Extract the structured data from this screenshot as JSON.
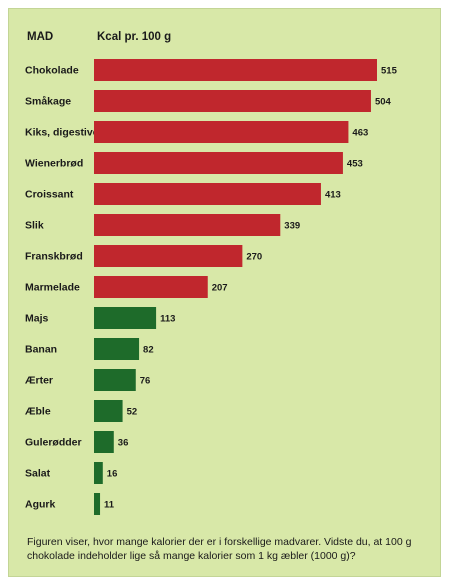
{
  "header": {
    "category_label": "MAD",
    "value_label": "Kcal pr. 100 g"
  },
  "caption": "Figuren viser, hvor mange kalorier der er i forskellige madvarer. Vidste du, at 100 g chokolade indeholder lige så mange kalorier som 1 kg æbler (1000 g)?",
  "colors": {
    "background": "#d8e8a8",
    "high_bar": "#c0272d",
    "low_bar": "#1e6b2a"
  },
  "chart_data": {
    "type": "bar",
    "orientation": "horizontal",
    "categories": [
      "Chokolade",
      "Småkage",
      "Kiks, digestive",
      "Wienerbrød",
      "Croissant",
      "Slik",
      "Franskbrød",
      "Marmelade",
      "Majs",
      "Banan",
      "Ærter",
      "Æble",
      "Gulerødder",
      "Salat",
      "Agurk"
    ],
    "values": [
      515,
      504,
      463,
      453,
      413,
      339,
      270,
      207,
      113,
      82,
      76,
      52,
      36,
      16,
      11
    ],
    "bar_colors": [
      "#c0272d",
      "#c0272d",
      "#c0272d",
      "#c0272d",
      "#c0272d",
      "#c0272d",
      "#c0272d",
      "#c0272d",
      "#1e6b2a",
      "#1e6b2a",
      "#1e6b2a",
      "#1e6b2a",
      "#1e6b2a",
      "#1e6b2a",
      "#1e6b2a"
    ],
    "title": "",
    "xlabel": "Kcal pr. 100 g",
    "ylabel": "MAD",
    "xlim": [
      0,
      515
    ],
    "grid": false,
    "legend": "none"
  }
}
